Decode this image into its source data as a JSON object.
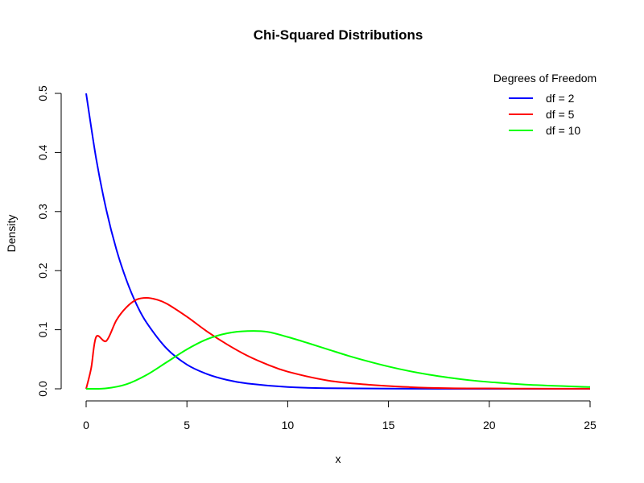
{
  "chart_data": {
    "type": "line",
    "title": "Chi-Squared Distributions",
    "xlabel": "x",
    "ylabel": "Density",
    "xlim": [
      0,
      25
    ],
    "ylim": [
      0,
      0.5
    ],
    "x_ticks": [
      "0",
      "5",
      "10",
      "15",
      "20",
      "25"
    ],
    "y_ticks": [
      "0.0",
      "0.1",
      "0.2",
      "0.3",
      "0.4",
      "0.5"
    ],
    "grid": false,
    "legend": {
      "title": "Degrees of Freedom",
      "position": "top-right"
    },
    "series": [
      {
        "name": "df = 2",
        "color": "#0000ff",
        "x": [
          0,
          0.5,
          1,
          1.5,
          2,
          2.5,
          3,
          4,
          5,
          6,
          7,
          8,
          10,
          12,
          15,
          20,
          25
        ],
        "y": [
          0.5,
          0.389,
          0.303,
          0.236,
          0.184,
          0.143,
          0.112,
          0.068,
          0.041,
          0.025,
          0.015,
          0.009,
          0.003,
          0.001,
          0.0003,
          0.0,
          0.0
        ]
      },
      {
        "name": "df = 5",
        "color": "#ff0000",
        "x": [
          0,
          0.25,
          0.5,
          1,
          1.5,
          2,
          2.5,
          3,
          3.5,
          4,
          5,
          6,
          7,
          8,
          9,
          10,
          12,
          14,
          16,
          18,
          20,
          22,
          25
        ],
        "y": [
          0.0,
          0.035,
          0.088,
          0.081,
          0.116,
          0.138,
          0.151,
          0.154,
          0.151,
          0.144,
          0.122,
          0.097,
          0.075,
          0.056,
          0.041,
          0.029,
          0.014,
          0.007,
          0.003,
          0.001,
          0.0006,
          0.0003,
          0.0001
        ]
      },
      {
        "name": "df = 10",
        "color": "#00ff00",
        "x": [
          0,
          1,
          2,
          3,
          4,
          5,
          6,
          7,
          8,
          9,
          10,
          11,
          12,
          13,
          14,
          15,
          16,
          17,
          18,
          19,
          20,
          22,
          25
        ],
        "y": [
          0.0,
          0.0008,
          0.0077,
          0.0235,
          0.0451,
          0.0668,
          0.084,
          0.094,
          0.0977,
          0.0964,
          0.0877,
          0.0775,
          0.0667,
          0.056,
          0.0464,
          0.0377,
          0.0302,
          0.024,
          0.0189,
          0.0147,
          0.0115,
          0.0068,
          0.003
        ]
      }
    ]
  }
}
